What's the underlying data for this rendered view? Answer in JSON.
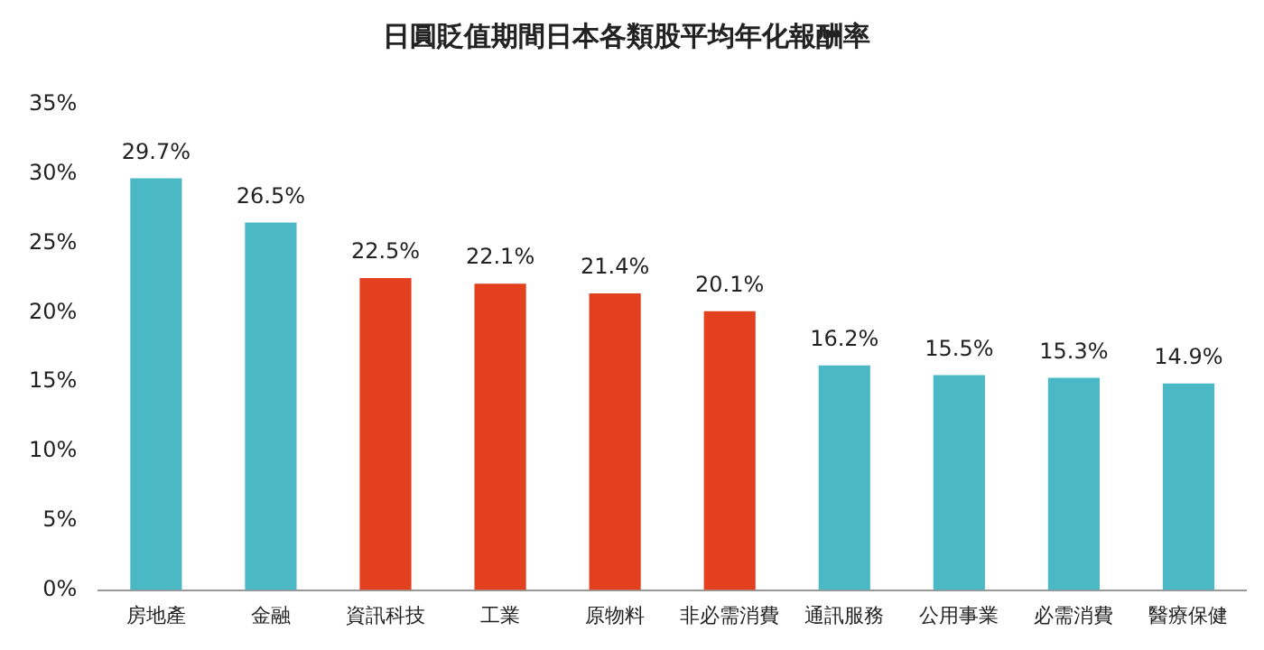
{
  "chart_data": {
    "type": "bar",
    "title": "日圓貶值期間日本各類股平均年化報酬率",
    "categories": [
      "房地產",
      "金融",
      "資訊科技",
      "工業",
      "原物料",
      "非必需消費",
      "通訊服務",
      "公用事業",
      "必需消費",
      "醫療保健"
    ],
    "values": [
      29.7,
      26.5,
      22.5,
      22.1,
      21.4,
      20.1,
      16.2,
      15.5,
      15.3,
      14.9
    ],
    "colors": [
      "#4bb8c6",
      "#4bb8c6",
      "#e2401f",
      "#e2401f",
      "#e2401f",
      "#e2401f",
      "#4bb8c6",
      "#4bb8c6",
      "#4bb8c6",
      "#4bb8c6"
    ],
    "value_labels": [
      "29.7%",
      "26.5%",
      "22.5%",
      "22.1%",
      "21.4%",
      "20.1%",
      "16.2%",
      "15.5%",
      "15.3%",
      "14.9%"
    ],
    "ylim": [
      0,
      35
    ],
    "yticks": [
      {
        "value": 0,
        "label": "0%"
      },
      {
        "value": 5,
        "label": "5%"
      },
      {
        "value": 10,
        "label": "10%"
      },
      {
        "value": 15,
        "label": "15%"
      },
      {
        "value": 20,
        "label": "20%"
      },
      {
        "value": 25,
        "label": "25%"
      },
      {
        "value": 30,
        "label": "30%"
      },
      {
        "value": 35,
        "label": "35%"
      }
    ],
    "grid": false,
    "legend": false
  }
}
